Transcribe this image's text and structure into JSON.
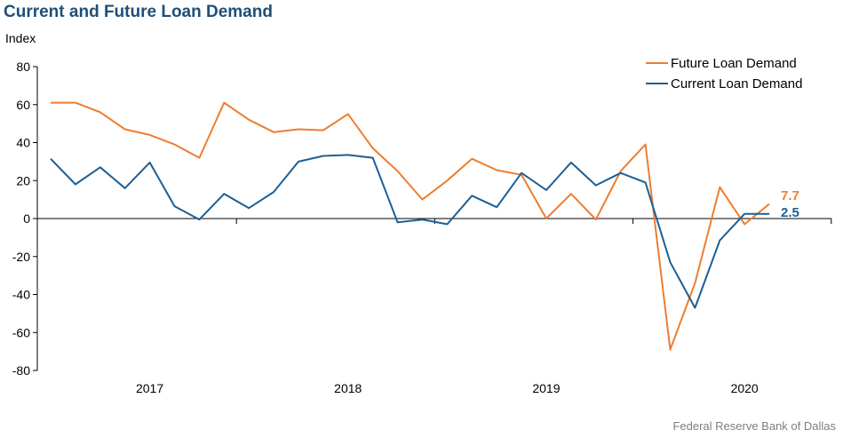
{
  "title": "Current and Future Loan Demand",
  "source": "Federal Reserve Bank of Dallas",
  "colors": {
    "future": "#ed7d31",
    "current": "#1c5f96",
    "title": "#1f4e79",
    "axis": "#000000"
  },
  "chart_data": {
    "type": "line",
    "ylabel": "Index",
    "ylim": [
      -80,
      80
    ],
    "yticks": [
      80,
      60,
      40,
      20,
      0,
      -20,
      -40,
      -60,
      -80
    ],
    "year_labels": [
      {
        "label": "2017",
        "center": 4.5
      },
      {
        "label": "2018",
        "center": 12.5
      },
      {
        "label": "2019",
        "center": 20.5
      },
      {
        "label": "2020",
        "center": 28.5
      }
    ],
    "year_dividers": [
      0,
      8,
      16,
      24,
      32
    ],
    "legend_position": "top-right",
    "series": [
      {
        "name": "Future Loan Demand",
        "color": "#ed7d31",
        "end_label": "7.7",
        "values": [
          61,
          61,
          56,
          47,
          44,
          39,
          32,
          61,
          52,
          45.5,
          47,
          46.5,
          55,
          37,
          25,
          10,
          20,
          31.5,
          25.5,
          23,
          0,
          13,
          -0.5,
          25,
          39,
          -69,
          -34,
          16.5,
          -3,
          7.7
        ]
      },
      {
        "name": "Current Loan Demand",
        "color": "#1c5f96",
        "end_label": "2.5",
        "values": [
          31.5,
          18,
          27,
          16,
          29.5,
          6.5,
          -0.5,
          13,
          5.5,
          14,
          30,
          33,
          33.5,
          32,
          -2,
          -0.5,
          -3,
          12,
          6,
          24,
          15,
          29.5,
          17.5,
          24,
          19,
          -23,
          -47,
          -11.5,
          2.5,
          2.5
        ]
      }
    ]
  }
}
